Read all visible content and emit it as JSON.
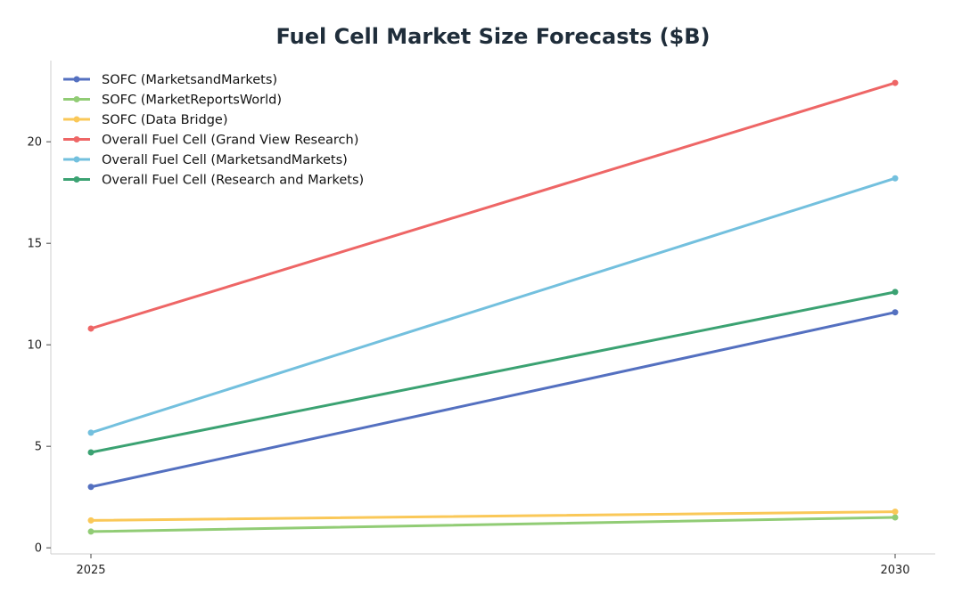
{
  "chart_data": {
    "type": "line",
    "title": "Fuel Cell Market Size Forecasts ($B)",
    "xlabel": "",
    "ylabel": "",
    "x": [
      2025,
      2030
    ],
    "x_ticks": [
      "2025",
      "2030"
    ],
    "y_ticks": [
      0,
      5,
      10,
      15,
      20
    ],
    "ylim": [
      -0.3,
      24
    ],
    "grid": false,
    "legend_position": "top-left",
    "series": [
      {
        "name": "SOFC (MarketsandMarkets)",
        "color": "#5470c0",
        "values": [
          3.0,
          11.6
        ]
      },
      {
        "name": "SOFC (MarketReportsWorld)",
        "color": "#91cc75",
        "values": [
          0.8,
          1.5
        ]
      },
      {
        "name": "SOFC (Data Bridge)",
        "color": "#fac858",
        "values": [
          1.35,
          1.78
        ]
      },
      {
        "name": "Overall Fuel Cell (Grand View Research)",
        "color": "#ee6666",
        "values": [
          10.8,
          22.9
        ]
      },
      {
        "name": "Overall Fuel Cell (MarketsandMarkets)",
        "color": "#73c0de",
        "values": [
          5.67,
          18.2
        ]
      },
      {
        "name": "Overall Fuel Cell (Research and Markets)",
        "color": "#3ba272",
        "values": [
          4.7,
          12.6
        ]
      }
    ]
  }
}
